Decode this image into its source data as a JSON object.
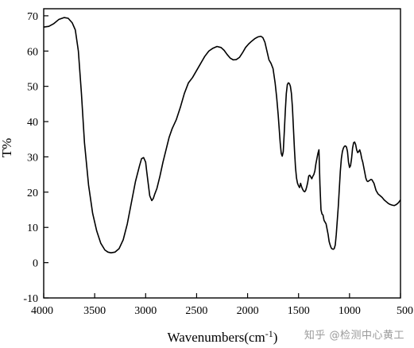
{
  "chart_data": {
    "type": "line",
    "xlabel": "Wavenumbers(cm",
    "xlabel_sup": "-1",
    "xlabel_suffix": ")",
    "ylabel": "T%",
    "xlim": [
      4000,
      500
    ],
    "ylim": [
      -10,
      72
    ],
    "x_ticks": [
      4000,
      3500,
      3000,
      2500,
      2000,
      1500,
      1000,
      500
    ],
    "y_ticks": [
      -10,
      0,
      10,
      20,
      30,
      40,
      50,
      60,
      70
    ],
    "grid": false,
    "series": [
      {
        "x": [
          4000,
          3950,
          3900,
          3850,
          3800,
          3760,
          3720,
          3690,
          3660,
          3630,
          3600,
          3560,
          3520,
          3480,
          3440,
          3400,
          3370,
          3340,
          3300,
          3260,
          3220,
          3180,
          3140,
          3100,
          3060,
          3040,
          3020,
          3000,
          2990,
          2975,
          2960,
          2940,
          2925,
          2910,
          2890,
          2860,
          2830,
          2800,
          2770,
          2740,
          2700,
          2660,
          2620,
          2580,
          2540,
          2500,
          2460,
          2420,
          2380,
          2340,
          2300,
          2260,
          2230,
          2200,
          2170,
          2140,
          2110,
          2080,
          2050,
          2020,
          1990,
          1960,
          1930,
          1900,
          1870,
          1850,
          1830,
          1810,
          1790,
          1770,
          1750,
          1730,
          1715,
          1700,
          1690,
          1680,
          1670,
          1660,
          1650,
          1640,
          1630,
          1620,
          1610,
          1600,
          1590,
          1580,
          1570,
          1560,
          1550,
          1540,
          1530,
          1520,
          1510,
          1500,
          1490,
          1480,
          1470,
          1460,
          1450,
          1440,
          1430,
          1420,
          1410,
          1400,
          1390,
          1380,
          1370,
          1360,
          1350,
          1340,
          1330,
          1320,
          1310,
          1300,
          1290,
          1280,
          1270,
          1260,
          1250,
          1240,
          1230,
          1220,
          1210,
          1200,
          1190,
          1180,
          1170,
          1160,
          1150,
          1140,
          1130,
          1120,
          1110,
          1100,
          1090,
          1080,
          1070,
          1060,
          1050,
          1040,
          1030,
          1020,
          1010,
          1000,
          990,
          980,
          970,
          960,
          950,
          940,
          930,
          920,
          910,
          900,
          890,
          880,
          870,
          860,
          850,
          840,
          830,
          820,
          810,
          800,
          790,
          780,
          760,
          740,
          720,
          700,
          680,
          660,
          640,
          620,
          600,
          580,
          560,
          540,
          520,
          500
        ],
        "y": [
          66.8,
          67,
          67.8,
          69,
          69.5,
          69.3,
          68,
          66,
          60,
          48,
          34,
          22,
          14,
          9,
          5.5,
          3.6,
          3,
          2.8,
          3,
          4,
          6.5,
          11,
          17,
          23,
          27.5,
          29.5,
          29.8,
          28.5,
          26,
          22.5,
          19,
          17.6,
          18.2,
          19.5,
          21,
          24.5,
          28.5,
          32,
          35.5,
          38,
          40.5,
          44,
          48,
          51,
          52.5,
          54.5,
          56.5,
          58.5,
          60,
          60.8,
          61.3,
          61,
          60.2,
          59,
          58,
          57.5,
          57.6,
          58.2,
          59.5,
          61,
          62,
          62.8,
          63.5,
          64,
          64.2,
          63.8,
          62.5,
          60,
          57.5,
          56.5,
          55,
          51,
          47,
          42,
          38,
          34,
          31,
          30.2,
          31.5,
          37,
          43,
          48,
          50.5,
          51,
          50.8,
          50,
          48,
          44,
          38,
          32,
          27,
          24,
          22.5,
          21.8,
          21.3,
          22.5,
          21.5,
          20.8,
          20.3,
          20.1,
          20.5,
          21.5,
          22.8,
          24.6,
          24.8,
          24.3,
          23.8,
          24.5,
          25,
          26,
          28,
          29.5,
          31,
          32,
          22,
          15,
          13.8,
          13.5,
          12,
          11.5,
          11,
          9.5,
          8,
          6,
          5,
          4.2,
          3.9,
          3.8,
          4,
          5,
          8,
          12,
          16,
          21,
          26,
          29.5,
          31.5,
          32.5,
          33,
          33.1,
          32.8,
          31.5,
          28.5,
          27,
          27.5,
          29.5,
          32.5,
          34,
          34.2,
          33.5,
          32,
          31.2,
          31.5,
          32,
          31,
          29.5,
          28.5,
          27,
          25.5,
          24,
          23.2,
          23,
          23.2,
          23.4,
          23.6,
          23.5,
          22.5,
          20.5,
          19.5,
          19,
          18.5,
          17.8,
          17.3,
          16.8,
          16.5,
          16.3,
          16.2,
          16.5,
          17,
          17.8
        ]
      }
    ]
  },
  "watermark": "知乎 @检测中心黄工"
}
